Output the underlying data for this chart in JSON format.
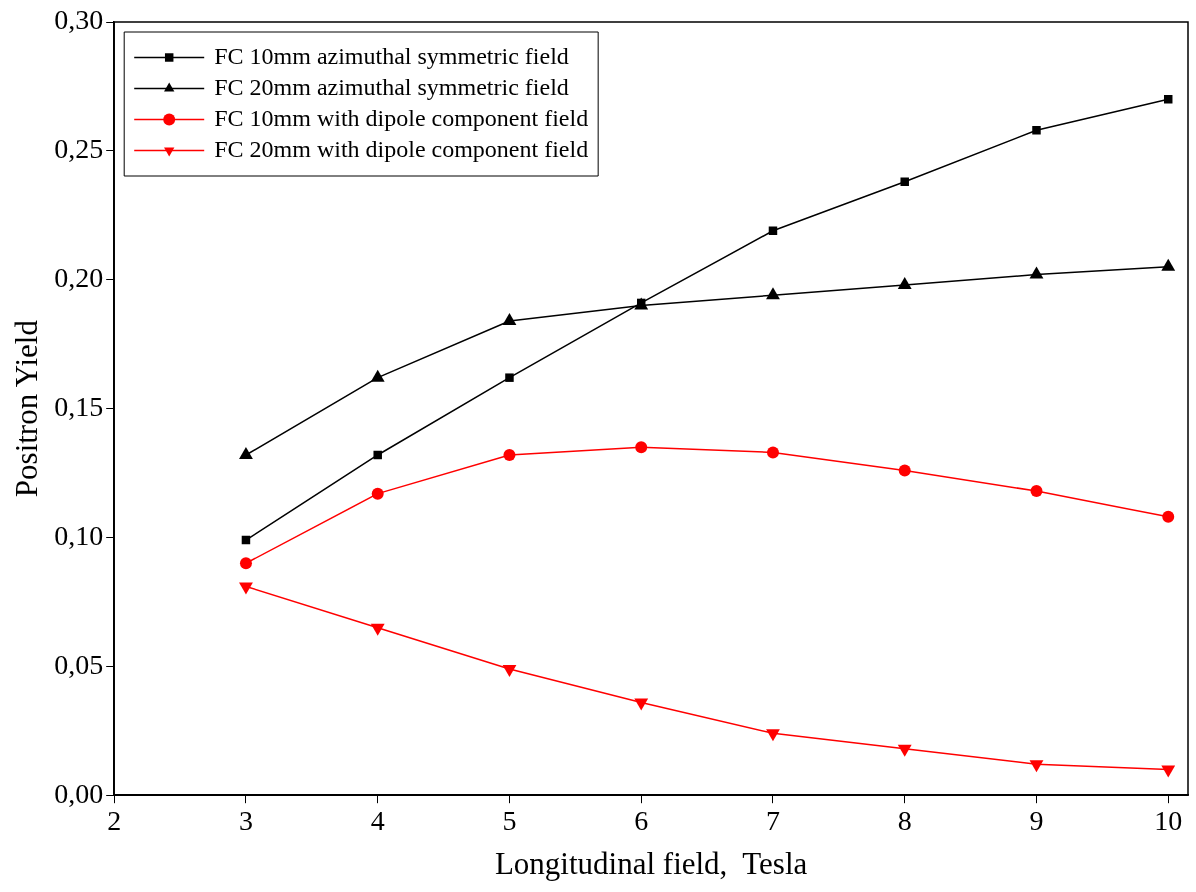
{
  "chart_data": {
    "type": "line",
    "xlabel": "Longitudinal field,  Tesla",
    "ylabel": "Positron Yield",
    "x": [
      3,
      4,
      5,
      6,
      7,
      8,
      9,
      10
    ],
    "series": [
      {
        "name": "FC 10mm azimuthal symmetric field",
        "color": "#000000",
        "marker": "square",
        "values": [
          0.099,
          0.132,
          0.162,
          0.191,
          0.219,
          0.238,
          0.258,
          0.27
        ]
      },
      {
        "name": "FC 20mm azimuthal symmetric field",
        "color": "#000000",
        "marker": "triangle",
        "values": [
          0.132,
          0.162,
          0.184,
          0.19,
          0.194,
          0.198,
          0.202,
          0.205
        ]
      },
      {
        "name": "FC 10mm with dipole component field",
        "color": "#ff0000",
        "marker": "circle",
        "values": [
          0.09,
          0.117,
          0.132,
          0.135,
          0.133,
          0.126,
          0.118,
          0.108
        ]
      },
      {
        "name": "FC 20mm with dipole component field",
        "color": "#ff0000",
        "marker": "triangle-down",
        "values": [
          0.081,
          0.065,
          0.049,
          0.036,
          0.024,
          0.018,
          0.012,
          0.01
        ]
      }
    ],
    "xlim": [
      2,
      10.15
    ],
    "xticks": [
      2,
      3,
      4,
      5,
      6,
      7,
      8,
      9,
      10
    ],
    "ylim": [
      0,
      0.3
    ],
    "yticks": [
      {
        "value": 0,
        "label": "0,00"
      },
      {
        "value": 0.05,
        "label": "0,05"
      },
      {
        "value": 0.1,
        "label": "0,10"
      },
      {
        "value": 0.15,
        "label": "0,15"
      },
      {
        "value": 0.2,
        "label": "0,20"
      },
      {
        "value": 0.25,
        "label": "0,25"
      },
      {
        "value": 0.3,
        "label": "0,30"
      }
    ],
    "grid": false,
    "legend": "top left",
    "line_style": "solid"
  }
}
